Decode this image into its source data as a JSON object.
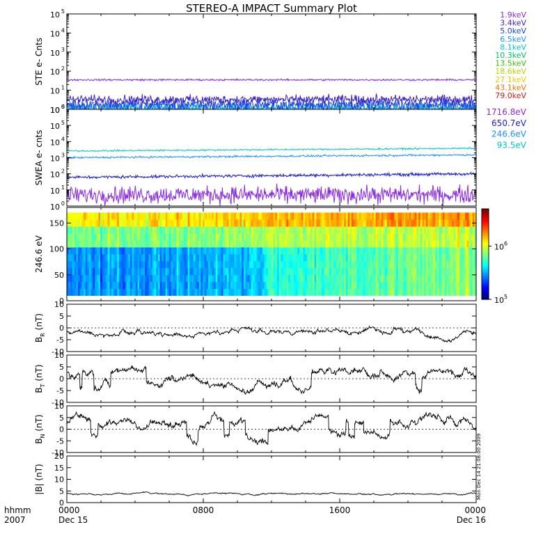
{
  "title": "STEREO-A IMPACT Summary Plot",
  "colors": {
    "axis": "#000000",
    "trace": "#000000"
  },
  "energy_legends": {
    "ste": [
      {
        "label": "1.9keV",
        "color": "#8a2be2"
      },
      {
        "label": "3.4keV",
        "color": "#3d1fc8"
      },
      {
        "label": "5.0keV",
        "color": "#1a44e0"
      },
      {
        "label": "6.5keV",
        "color": "#1e90ff"
      },
      {
        "label": "8.1keV",
        "color": "#00c8c8"
      },
      {
        "label": "10.3keV",
        "color": "#00c060"
      },
      {
        "label": "13.5keV",
        "color": "#40c000"
      },
      {
        "label": "18.6keV",
        "color": "#b4d200"
      },
      {
        "label": "27.1keV",
        "color": "#f0c800"
      },
      {
        "label": "43.1keV",
        "color": "#e07800"
      },
      {
        "label": "79.0keV",
        "color": "#d01818"
      }
    ],
    "swea": [
      {
        "label": "1716.8eV",
        "color": "#8a2be2"
      },
      {
        "label": "650.7eV",
        "color": "#1a1ad0"
      },
      {
        "label": "246.6eV",
        "color": "#1e90ff"
      },
      {
        "label": "93.5eV",
        "color": "#00c8c8"
      }
    ]
  },
  "time_axis": {
    "corner_labels": [
      "hhmm",
      "2007"
    ],
    "ticks": [
      {
        "at": 0,
        "hhmm": "0000",
        "date": "Dec 15"
      },
      {
        "at": 8,
        "hhmm": "0800",
        "date": ""
      },
      {
        "at": 16,
        "hhmm": "1600",
        "date": ""
      },
      {
        "at": 24,
        "hhmm": "0000",
        "date": "Dec 16"
      }
    ]
  },
  "side_note": "Mon Dec 14 21:08:00 2009",
  "chart_data": [
    {
      "id": "ste",
      "type": "line",
      "yscale": "log",
      "ylabel": "STE e- Cnts",
      "ylim": [
        1,
        100000
      ],
      "yticks": [
        {
          "v": 1,
          "base": "10",
          "exp": "0"
        },
        {
          "v": 10,
          "base": "10",
          "exp": "1"
        },
        {
          "v": 100,
          "base": "10",
          "exp": "2"
        },
        {
          "v": 1000,
          "base": "10",
          "exp": "3"
        },
        {
          "v": 10000,
          "base": "10",
          "exp": "4"
        },
        {
          "v": 100000,
          "base": "10",
          "exp": "5"
        }
      ],
      "xlim": [
        0,
        24
      ],
      "series": [
        {
          "name": "1.9keV",
          "color": "#8a2be2",
          "level": 35,
          "noise": 0.04
        },
        {
          "name": "3.4keV",
          "color": "#3d1fc8",
          "level": 3.2,
          "noise": 0.2
        },
        {
          "name": "5.0keV",
          "color": "#1a44e0",
          "level": 1.8,
          "noise": 0.25
        },
        {
          "name": "6.5keV",
          "color": "#1e90ff",
          "level": 1.2,
          "noise": 0.25
        },
        {
          "name": "8.1keV",
          "color": "#00c8c8",
          "level": 1.0,
          "noise": 0.25
        }
      ]
    },
    {
      "id": "swea",
      "type": "line",
      "yscale": "log",
      "ylabel": "SWEA e- cnts",
      "ylim": [
        1,
        1000000
      ],
      "yticks": [
        {
          "v": 1,
          "base": "10",
          "exp": "0"
        },
        {
          "v": 10,
          "base": "10",
          "exp": "1"
        },
        {
          "v": 100,
          "base": "10",
          "exp": "2"
        },
        {
          "v": 1000,
          "base": "10",
          "exp": "3"
        },
        {
          "v": 10000,
          "base": "10",
          "exp": "4"
        },
        {
          "v": 100000,
          "base": "10",
          "exp": "5"
        },
        {
          "v": 1000000,
          "base": "10",
          "exp": "6"
        }
      ],
      "xlim": [
        0,
        24
      ],
      "series": [
        {
          "name": "93.5eV",
          "color": "#00c8c8",
          "level_start": 2600,
          "level_end": 3800,
          "noise": 0.04
        },
        {
          "name": "246.6eV",
          "color": "#1e90ff",
          "level_start": 1000,
          "level_end": 1500,
          "noise": 0.05
        },
        {
          "name": "650.7eV",
          "color": "#1a1ad0",
          "level_start": 60,
          "level_end": 100,
          "noise": 0.08
        },
        {
          "name": "1716.8eV",
          "color": "#8a2be2",
          "level_start": 5,
          "level_end": 5,
          "noise": 0.45
        }
      ]
    },
    {
      "id": "pad",
      "type": "heatmap",
      "ylabel": "246.6 eV",
      "ylim": [
        0,
        180
      ],
      "yticks": [
        0,
        50,
        100,
        150
      ],
      "xlim": [
        0,
        24
      ],
      "colorbar": {
        "scale": "log",
        "range": [
          100000,
          5000000
        ],
        "ticks": [
          {
            "v": 100000,
            "base": "10",
            "exp": "5"
          },
          {
            "v": 1000000,
            "base": "10",
            "exp": "6"
          }
        ]
      }
    },
    {
      "id": "br",
      "type": "line",
      "ylabel_main": "B",
      "ylabel_sub": "R",
      "ylabel_unit": " (nT)",
      "ylim": [
        -10,
        10
      ],
      "yticks": [
        "10",
        "5",
        "0",
        "-5",
        "-10"
      ],
      "xlim": [
        0,
        24
      ],
      "series": [
        {
          "name": "BR",
          "mean": -1.5,
          "amp": 2.2,
          "flips": false
        }
      ]
    },
    {
      "id": "bt",
      "type": "line",
      "ylabel_main": "B",
      "ylabel_sub": "T",
      "ylabel_unit": " (nT)",
      "ylim": [
        -10,
        10
      ],
      "yticks": [
        "10",
        "5",
        "0",
        "-5",
        "-10"
      ],
      "xlim": [
        0,
        24
      ],
      "series": [
        {
          "name": "BT",
          "mean": 0.5,
          "amp": 3.5,
          "flips": true
        }
      ]
    },
    {
      "id": "bn",
      "type": "line",
      "ylabel_main": "B",
      "ylabel_sub": "N",
      "ylabel_unit": " (nT)",
      "ylim": [
        -10,
        10
      ],
      "yticks": [
        "10",
        "5",
        "0",
        "-5",
        "-10"
      ],
      "xlim": [
        0,
        24
      ],
      "series": [
        {
          "name": "BN",
          "mean": 0,
          "amp": 3.5,
          "flips": true
        }
      ]
    },
    {
      "id": "bmag",
      "type": "line",
      "ylabel_main": "|B|",
      "ylabel_sub": "",
      "ylabel_unit": " (nT)",
      "ylim": [
        0,
        20
      ],
      "yticks": [
        "20",
        "15",
        "10",
        "5",
        "0"
      ],
      "xlim": [
        0,
        24
      ],
      "series": [
        {
          "name": "|B|",
          "mean": 3.8,
          "amp": 0.7,
          "flips": false
        }
      ]
    }
  ]
}
